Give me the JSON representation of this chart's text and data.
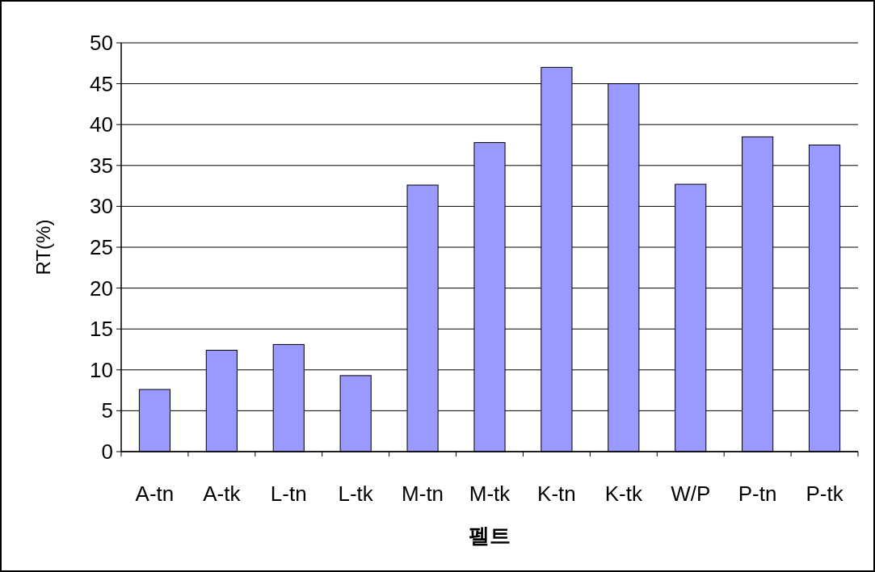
{
  "chart_data": {
    "type": "bar",
    "xlabel": "펠트",
    "ylabel": "RT(%)",
    "categories": [
      "A-tn",
      "A-tk",
      "L-tn",
      "L-tk",
      "M-tn",
      "M-tk",
      "K-tn",
      "K-tk",
      "W/P",
      "P-tn",
      "P-tk"
    ],
    "values": [
      7.6,
      12.4,
      13.1,
      9.3,
      32.6,
      37.8,
      47.0,
      45.0,
      32.7,
      38.5,
      37.5
    ],
    "color": "#9999ff",
    "ylim": [
      0,
      50
    ],
    "yticks": [
      0,
      5,
      10,
      15,
      20,
      25,
      30,
      35,
      40,
      45,
      50
    ],
    "grid": "y"
  }
}
